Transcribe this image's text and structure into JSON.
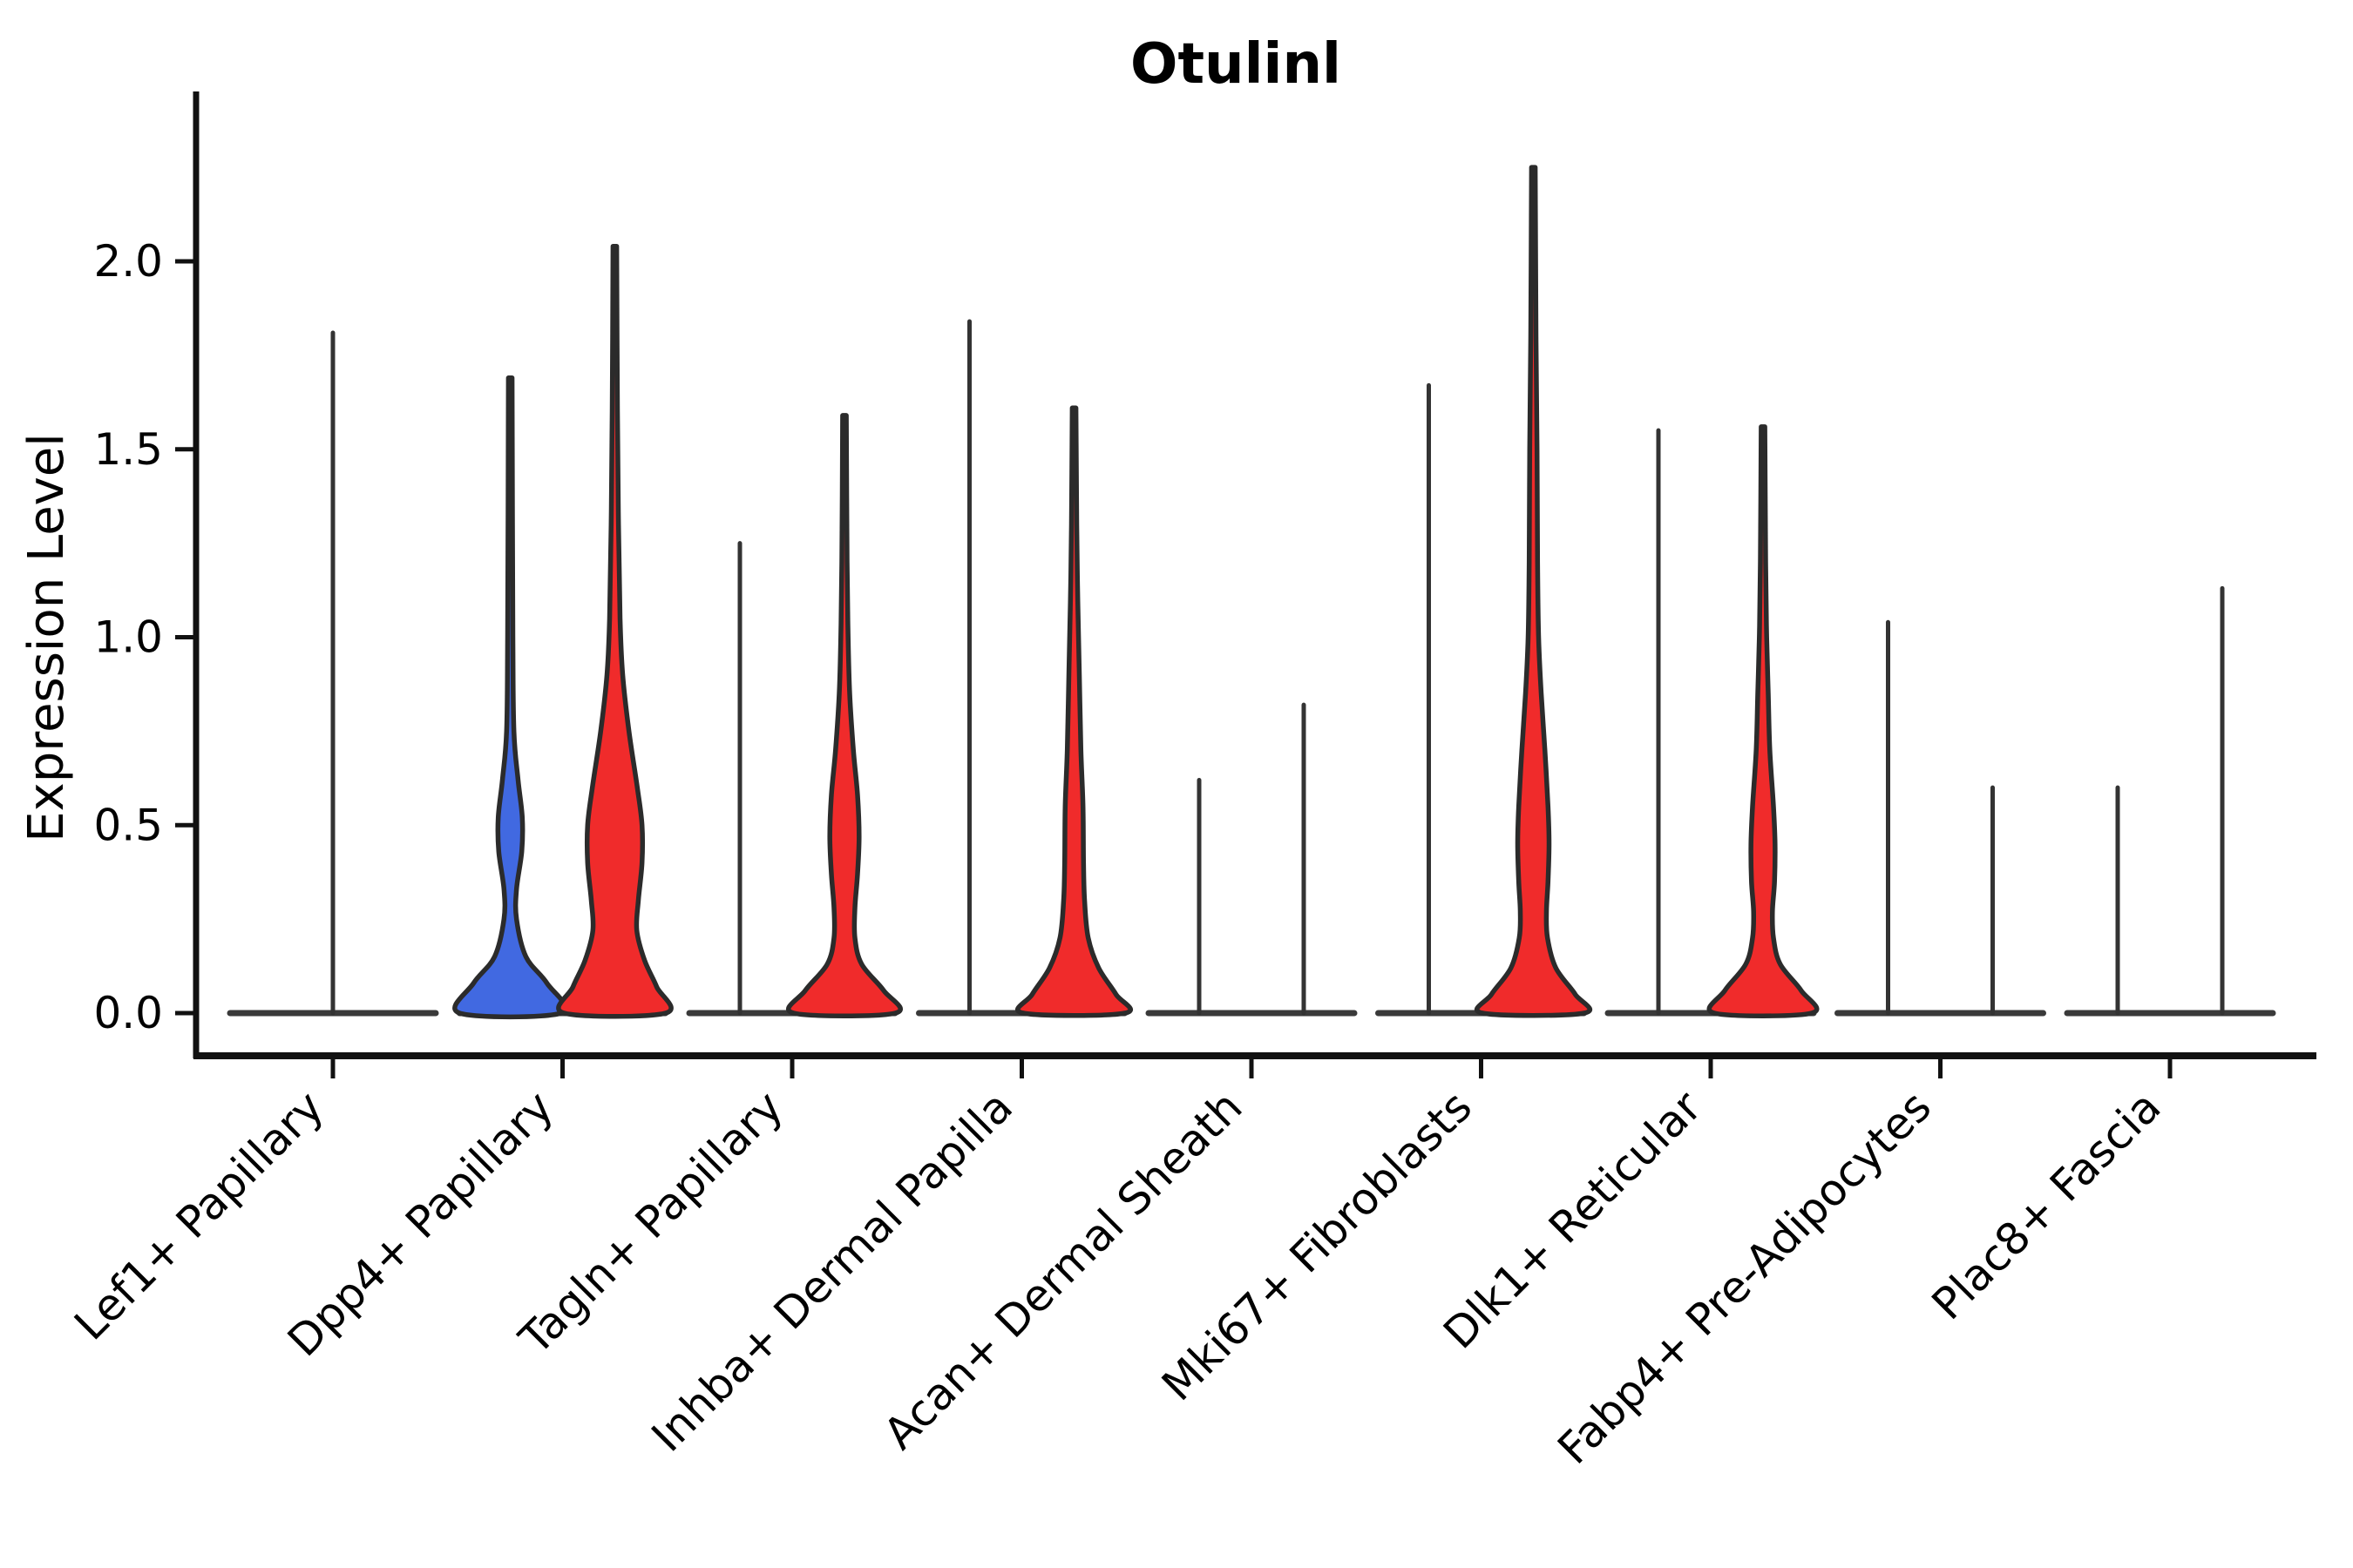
{
  "title": "Otulinl",
  "y_axis": {
    "label": "Expression Level",
    "ticks": [
      "0.0",
      "0.5",
      "1.0",
      "1.5",
      "2.0"
    ],
    "tick_values": [
      0.0,
      0.5,
      1.0,
      1.5,
      2.0
    ]
  },
  "colors": {
    "group_blue": "#4169E1",
    "group_red": "#F02B2B",
    "violin_outline": "#2B2B2B",
    "spike": "#333333",
    "baseline": "#3A3A3A",
    "axis": "#111111"
  },
  "chart_data": {
    "type": "violin",
    "title": "Otulinl",
    "xlabel": "",
    "ylabel": "Expression Level",
    "ylim": [
      0,
      2.45
    ],
    "grid": false,
    "legend": "none",
    "categories": [
      "Lef1+ Papillary",
      "Dpp4+ Papillary",
      "Tagln+ Papillary",
      "Inhba+ Dermal Papilla",
      "Acan+ Dermal Sheath",
      "Mki67+ Fibroblasts",
      "Dlk1+ Reticular",
      "Fabp4+ Pre-Adipocytes",
      "Plac8+ Fascia"
    ],
    "series": [
      {
        "name": "blue-group",
        "color": "#4169E1",
        "max_expression": [
          1.81,
          1.69,
          1.25,
          1.84,
          0.62,
          1.67,
          1.55,
          1.04,
          0.6
        ]
      },
      {
        "name": "red-group",
        "color": "#F02B2B",
        "max_expression": [
          null,
          2.04,
          1.59,
          1.61,
          0.82,
          2.25,
          1.56,
          0.6,
          1.13
        ]
      }
    ],
    "violins": [
      {
        "category_index": 0,
        "position": "center",
        "group": null,
        "shape": "spike",
        "max": 1.81,
        "profile": null
      },
      {
        "category_index": 1,
        "position": "left",
        "group": "blue",
        "shape": "density",
        "max": 1.69,
        "profile": [
          [
            1.69,
            0.035
          ],
          [
            1.0,
            0.05
          ],
          [
            0.75,
            0.07
          ],
          [
            0.62,
            0.15
          ],
          [
            0.52,
            0.23
          ],
          [
            0.43,
            0.22
          ],
          [
            0.33,
            0.12
          ],
          [
            0.25,
            0.12
          ],
          [
            0.15,
            0.3
          ],
          [
            0.08,
            0.7
          ],
          [
            0.0,
            0.97
          ]
        ]
      },
      {
        "category_index": 1,
        "position": "right",
        "group": "red",
        "shape": "density",
        "max": 2.04,
        "profile": [
          [
            2.04,
            0.035
          ],
          [
            1.6,
            0.05
          ],
          [
            1.3,
            0.07
          ],
          [
            1.05,
            0.1
          ],
          [
            0.9,
            0.15
          ],
          [
            0.75,
            0.27
          ],
          [
            0.6,
            0.43
          ],
          [
            0.5,
            0.52
          ],
          [
            0.4,
            0.52
          ],
          [
            0.3,
            0.45
          ],
          [
            0.22,
            0.42
          ],
          [
            0.14,
            0.57
          ],
          [
            0.07,
            0.8
          ],
          [
            0.0,
            0.97
          ]
        ]
      },
      {
        "category_index": 2,
        "position": "left",
        "group": "blue",
        "shape": "spike",
        "max": 1.25,
        "profile": null
      },
      {
        "category_index": 2,
        "position": "right",
        "group": "red",
        "shape": "density",
        "max": 1.59,
        "profile": [
          [
            1.59,
            0.035
          ],
          [
            1.2,
            0.05
          ],
          [
            1.0,
            0.07
          ],
          [
            0.85,
            0.1
          ],
          [
            0.7,
            0.17
          ],
          [
            0.58,
            0.25
          ],
          [
            0.47,
            0.28
          ],
          [
            0.37,
            0.25
          ],
          [
            0.28,
            0.2
          ],
          [
            0.2,
            0.2
          ],
          [
            0.13,
            0.33
          ],
          [
            0.06,
            0.75
          ],
          [
            0.0,
            0.97
          ]
        ]
      },
      {
        "category_index": 3,
        "position": "left",
        "group": "blue",
        "shape": "spike",
        "max": 1.84,
        "profile": null
      },
      {
        "category_index": 3,
        "position": "right",
        "group": "red",
        "shape": "density",
        "max": 1.61,
        "profile": [
          [
            1.61,
            0.035
          ],
          [
            1.3,
            0.05
          ],
          [
            1.1,
            0.07
          ],
          [
            0.9,
            0.1
          ],
          [
            0.7,
            0.13
          ],
          [
            0.55,
            0.17
          ],
          [
            0.4,
            0.18
          ],
          [
            0.3,
            0.2
          ],
          [
            0.2,
            0.27
          ],
          [
            0.12,
            0.47
          ],
          [
            0.05,
            0.8
          ],
          [
            0.0,
            0.97
          ]
        ]
      },
      {
        "category_index": 4,
        "position": "left",
        "group": "blue",
        "shape": "spike",
        "max": 0.62,
        "profile": null
      },
      {
        "category_index": 4,
        "position": "right",
        "group": "red",
        "shape": "spike",
        "max": 0.82,
        "profile": null
      },
      {
        "category_index": 5,
        "position": "left",
        "group": "blue",
        "shape": "spike",
        "max": 1.67,
        "profile": null
      },
      {
        "category_index": 5,
        "position": "right",
        "group": "red",
        "shape": "density",
        "max": 2.25,
        "profile": [
          [
            2.25,
            0.035
          ],
          [
            1.8,
            0.05
          ],
          [
            1.5,
            0.07
          ],
          [
            1.2,
            0.08
          ],
          [
            1.0,
            0.1
          ],
          [
            0.85,
            0.15
          ],
          [
            0.7,
            0.22
          ],
          [
            0.55,
            0.28
          ],
          [
            0.45,
            0.3
          ],
          [
            0.35,
            0.28
          ],
          [
            0.27,
            0.25
          ],
          [
            0.2,
            0.27
          ],
          [
            0.12,
            0.43
          ],
          [
            0.05,
            0.8
          ],
          [
            0.0,
            0.97
          ]
        ]
      },
      {
        "category_index": 6,
        "position": "left",
        "group": "blue",
        "shape": "spike",
        "max": 1.55,
        "profile": null
      },
      {
        "category_index": 6,
        "position": "right",
        "group": "red",
        "shape": "density",
        "max": 1.56,
        "profile": [
          [
            1.56,
            0.035
          ],
          [
            1.2,
            0.05
          ],
          [
            1.0,
            0.07
          ],
          [
            0.85,
            0.1
          ],
          [
            0.7,
            0.13
          ],
          [
            0.55,
            0.2
          ],
          [
            0.45,
            0.23
          ],
          [
            0.35,
            0.22
          ],
          [
            0.27,
            0.18
          ],
          [
            0.2,
            0.2
          ],
          [
            0.13,
            0.33
          ],
          [
            0.06,
            0.73
          ],
          [
            0.0,
            0.93
          ]
        ]
      },
      {
        "category_index": 7,
        "position": "left",
        "group": "blue",
        "shape": "spike",
        "max": 1.04,
        "profile": null
      },
      {
        "category_index": 7,
        "position": "right",
        "group": "red",
        "shape": "spike",
        "max": 0.6,
        "profile": null
      },
      {
        "category_index": 8,
        "position": "left",
        "group": "blue",
        "shape": "spike",
        "max": 0.6,
        "profile": null
      },
      {
        "category_index": 8,
        "position": "right",
        "group": "red",
        "shape": "spike",
        "max": 1.13,
        "profile": null
      }
    ]
  }
}
